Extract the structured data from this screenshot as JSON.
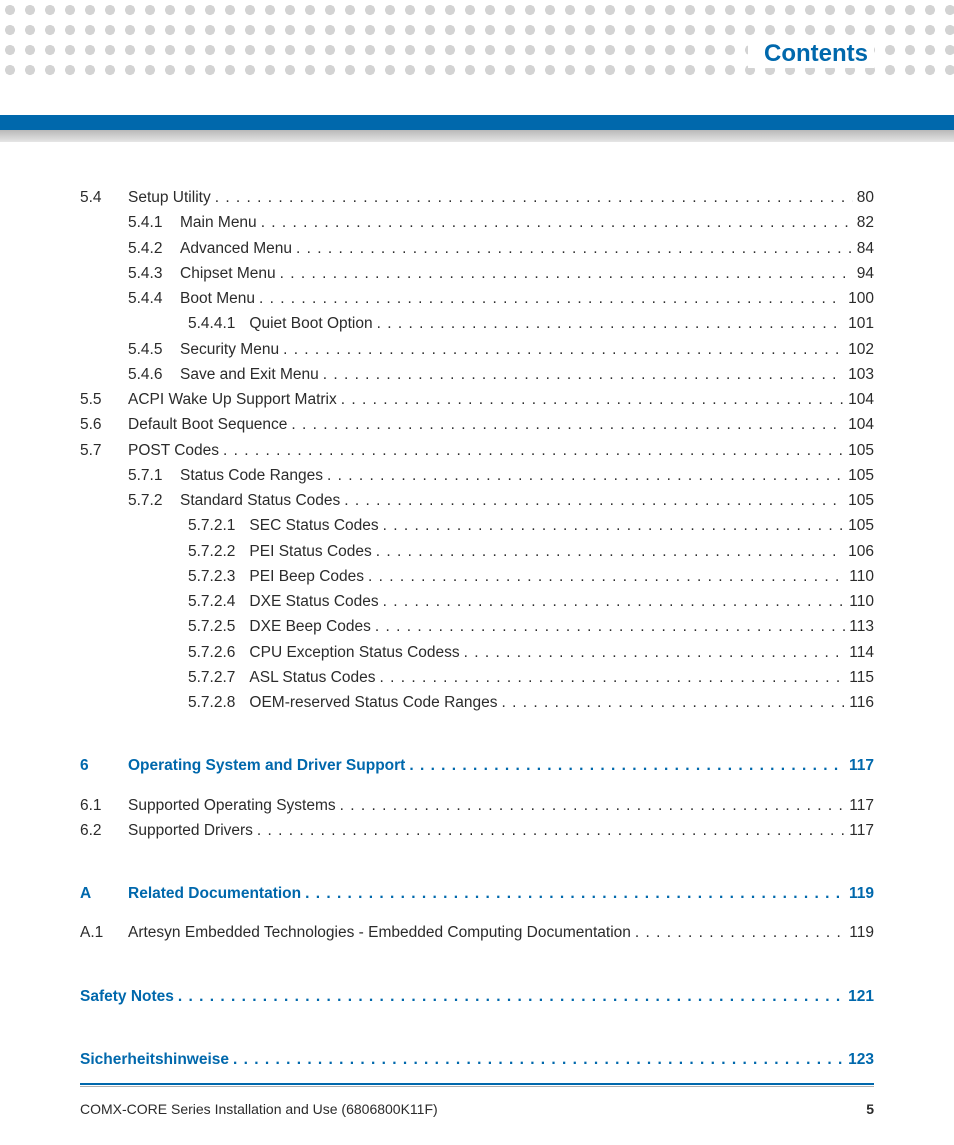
{
  "colors": {
    "accent": "#0068ac",
    "text": "#2b2b2b",
    "dot": "#d3d3d3",
    "gray_bar_top": "#b8b8b8",
    "gray_bar_bottom": "#e6e6e6",
    "background": "#ffffff"
  },
  "header": {
    "title": "Contents"
  },
  "footer": {
    "doc_title": "COMX-CORE Series Installation and Use (6806800K11F)",
    "page_number": "5"
  },
  "toc": [
    {
      "kind": "entry",
      "level": 1,
      "num": "5.4",
      "title": "Setup Utility",
      "page": "80"
    },
    {
      "kind": "entry",
      "level": 2,
      "num": "5.4.1",
      "title": "Main Menu",
      "page": "82"
    },
    {
      "kind": "entry",
      "level": 2,
      "num": "5.4.2",
      "title": "Advanced Menu",
      "page": "84"
    },
    {
      "kind": "entry",
      "level": 2,
      "num": "5.4.3",
      "title": "Chipset Menu",
      "page": "94"
    },
    {
      "kind": "entry",
      "level": 2,
      "num": "5.4.4",
      "title": "Boot Menu",
      "page": "100"
    },
    {
      "kind": "entry",
      "level": 3,
      "num": "5.4.4.1",
      "title": "Quiet Boot Option",
      "page": "101"
    },
    {
      "kind": "entry",
      "level": 2,
      "num": "5.4.5",
      "title": "Security Menu",
      "page": "102"
    },
    {
      "kind": "entry",
      "level": 2,
      "num": "5.4.6",
      "title": "Save and Exit Menu",
      "page": "103"
    },
    {
      "kind": "entry",
      "level": 1,
      "num": "5.5",
      "title": "ACPI Wake Up Support Matrix",
      "page": "104"
    },
    {
      "kind": "entry",
      "level": 1,
      "num": "5.6",
      "title": "Default Boot Sequence",
      "page": "104"
    },
    {
      "kind": "entry",
      "level": 1,
      "num": "5.7",
      "title": "POST Codes",
      "page": "105"
    },
    {
      "kind": "entry",
      "level": 2,
      "num": "5.7.1",
      "title": "Status Code Ranges",
      "page": "105"
    },
    {
      "kind": "entry",
      "level": 2,
      "num": "5.7.2",
      "title": "Standard Status Codes",
      "page": "105"
    },
    {
      "kind": "entry",
      "level": 3,
      "num": "5.7.2.1",
      "title": "SEC Status Codes",
      "page": "105"
    },
    {
      "kind": "entry",
      "level": 3,
      "num": "5.7.2.2",
      "title": "PEI Status Codes",
      "page": "106"
    },
    {
      "kind": "entry",
      "level": 3,
      "num": "5.7.2.3",
      "title": "PEI Beep Codes",
      "page": "110"
    },
    {
      "kind": "entry",
      "level": 3,
      "num": "5.7.2.4",
      "title": "DXE Status Codes",
      "page": "110"
    },
    {
      "kind": "entry",
      "level": 3,
      "num": "5.7.2.5",
      "title": "DXE Beep Codes",
      "page": "113"
    },
    {
      "kind": "entry",
      "level": 3,
      "num": "5.7.2.6",
      "title": "CPU Exception Status Codess",
      "page": "114"
    },
    {
      "kind": "entry",
      "level": 3,
      "num": "5.7.2.7",
      "title": "ASL Status Codes",
      "page": "115"
    },
    {
      "kind": "entry",
      "level": 3,
      "num": "5.7.2.8",
      "title": "OEM-reserved Status Code Ranges",
      "page": "116"
    },
    {
      "kind": "chapter",
      "num": "6",
      "title": "Operating System and Driver Support",
      "page": "117"
    },
    {
      "kind": "entry",
      "level": 1,
      "num": "6.1",
      "title": "Supported Operating Systems",
      "page": "117"
    },
    {
      "kind": "entry",
      "level": 1,
      "num": "6.2",
      "title": "Supported Drivers",
      "page": "117"
    },
    {
      "kind": "chapter",
      "num": "A",
      "title": "Related Documentation",
      "page": "119"
    },
    {
      "kind": "entry",
      "level": 1,
      "num": "A.1",
      "title": "Artesyn Embedded Technologies - Embedded Computing Documentation",
      "page": "119"
    },
    {
      "kind": "chapter",
      "num": "",
      "title": "Safety Notes",
      "page": "121"
    },
    {
      "kind": "chapter",
      "num": "",
      "title": "Sicherheitshinweise",
      "page": "123"
    }
  ]
}
